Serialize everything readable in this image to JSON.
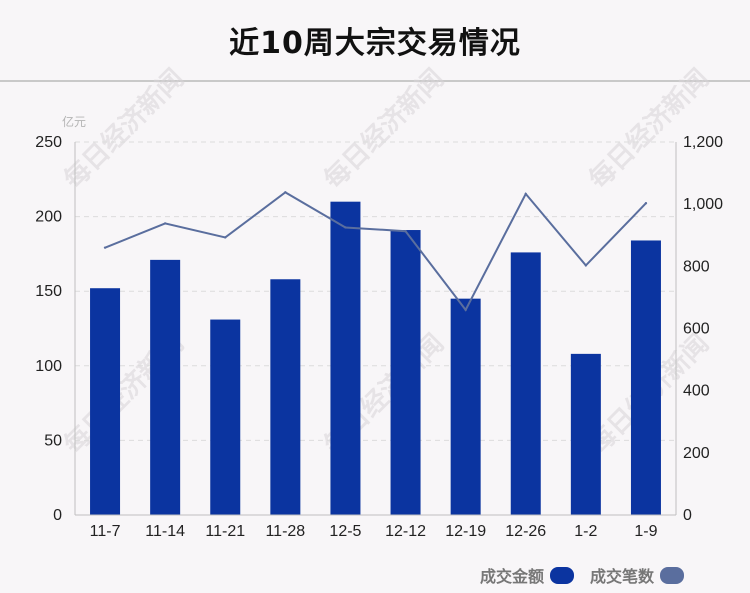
{
  "page": {
    "title": "近10周大宗交易情况"
  },
  "watermark_text": "每日经济新闻",
  "colors": {
    "bar": "#0b34a0",
    "line": "#5a6e9e",
    "grid": "#dcdcdc",
    "axis": "#bfbfbf"
  },
  "chart_data": {
    "type": "bar",
    "categories": [
      "11-7",
      "11-14",
      "11-21",
      "11-28",
      "12-5",
      "12-12",
      "12-19",
      "12-26",
      "1-2",
      "1-9"
    ],
    "series": [
      {
        "name": "成交金额",
        "type": "bar",
        "axis": "left",
        "values": [
          152,
          171,
          131,
          158,
          210,
          191,
          145,
          176,
          108,
          184
        ]
      },
      {
        "name": "成交笔数",
        "type": "line",
        "axis": "right",
        "values": [
          860,
          938,
          893,
          1038,
          925,
          913,
          660,
          1033,
          803,
          1003
        ]
      }
    ],
    "y_left": {
      "unit": "亿元",
      "min": 0,
      "max": 250,
      "ticks": [
        "0",
        "50",
        "100",
        "150",
        "200",
        "250"
      ]
    },
    "y_right": {
      "min": 0,
      "max": 1200,
      "ticks": [
        "0",
        "200",
        "400",
        "600",
        "800",
        "1,000",
        "1,200"
      ]
    },
    "grid": true,
    "legend": {
      "position": "bottom-right",
      "labels": [
        "成交金额",
        "成交笔数"
      ]
    }
  }
}
